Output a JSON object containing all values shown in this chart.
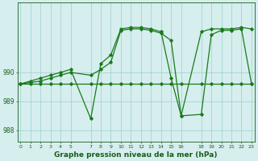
{
  "series_flat": {
    "x": [
      0,
      1,
      2,
      3,
      4,
      5,
      7,
      8,
      9,
      10,
      11,
      12,
      13,
      14,
      15,
      16,
      18,
      19,
      20,
      21,
      22,
      23
    ],
    "y": [
      989.6,
      989.6,
      989.6,
      989.6,
      989.6,
      989.6,
      989.6,
      989.6,
      989.6,
      989.6,
      989.6,
      989.6,
      989.6,
      989.6,
      989.6,
      989.6,
      989.6,
      989.6,
      989.6,
      989.6,
      989.6,
      989.6
    ],
    "color": "#1a7a1a",
    "linewidth": 0.9,
    "marker": "D",
    "markersize": 1.8
  },
  "series_upper": {
    "x": [
      0,
      1,
      2,
      3,
      4,
      5,
      7,
      8,
      9,
      10,
      11,
      12,
      13,
      14,
      15,
      16,
      18,
      19,
      20,
      21,
      22,
      23
    ],
    "y": [
      989.6,
      989.7,
      989.8,
      989.9,
      990.0,
      990.1,
      988.4,
      990.3,
      990.6,
      991.5,
      991.55,
      991.55,
      991.5,
      991.4,
      989.8,
      988.5,
      991.4,
      991.5,
      991.5,
      991.5,
      991.55,
      991.5
    ],
    "color": "#1a7a1a",
    "linewidth": 0.9,
    "marker": "D",
    "markersize": 1.8
  },
  "series_mid": {
    "x": [
      0,
      1,
      2,
      3,
      4,
      5,
      7,
      8,
      9,
      10,
      11,
      12,
      13,
      14,
      15,
      16,
      18,
      19,
      20,
      21,
      22,
      23
    ],
    "y": [
      989.6,
      989.65,
      989.7,
      989.8,
      989.9,
      990.0,
      989.9,
      990.1,
      990.35,
      991.45,
      991.5,
      991.5,
      991.45,
      991.35,
      991.1,
      988.5,
      988.55,
      991.3,
      991.45,
      991.45,
      991.5,
      989.6
    ],
    "color": "#1a7a1a",
    "linewidth": 0.9,
    "marker": "D",
    "markersize": 1.8
  },
  "background_color": "#d6eeee",
  "grid_color": "#9ecece",
  "axis_color": "#1a5c1a",
  "text_color": "#1a5c1a",
  "xlabel": "Graphe pression niveau de la mer (hPa)",
  "xlabel_fontsize": 6.5,
  "xlim": [
    -0.3,
    23.3
  ],
  "ylim": [
    987.6,
    992.4
  ],
  "yticks": [
    988,
    989,
    990
  ],
  "xticks": [
    0,
    1,
    2,
    3,
    4,
    5,
    7,
    8,
    9,
    10,
    11,
    12,
    13,
    14,
    15,
    16,
    18,
    19,
    20,
    21,
    22,
    23
  ],
  "xtick_labels": [
    "0",
    "1",
    "2",
    "3",
    "4",
    "5",
    "7",
    "8",
    "9",
    "10",
    "11",
    "12",
    "13",
    "14",
    "15",
    "16",
    "18",
    "19",
    "20",
    "21",
    "22",
    "23"
  ],
  "tick_fontsize": 4.5,
  "ytick_fontsize": 5.5
}
